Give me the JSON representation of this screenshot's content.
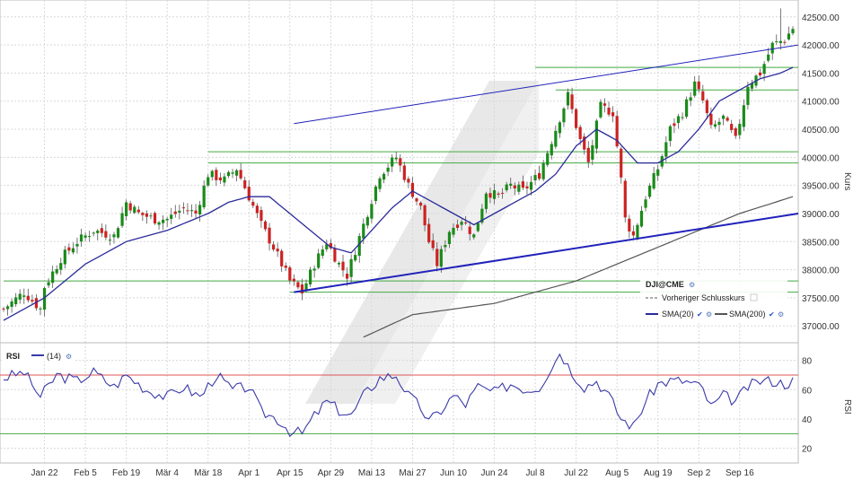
{
  "chart_data": [
    {
      "type": "candlestick",
      "symbol": "DJI@CME",
      "ylabel": "Kurs",
      "ylim": [
        36700,
        42800
      ],
      "yticks": [
        37000,
        37500,
        38000,
        38500,
        39000,
        39500,
        40000,
        40500,
        41000,
        41500,
        42000,
        42500
      ],
      "ytick_labels": [
        "37000.00",
        "37500.00",
        "38000.00",
        "38500.00",
        "39000.00",
        "39500.00",
        "40000.00",
        "40500.00",
        "41000.00",
        "41500.00",
        "42000.00",
        "42500.00"
      ],
      "x_labels": [
        "Jan 22",
        "Feb 5",
        "Feb 19",
        "Mär 4",
        "Mär 18",
        "Apr 1",
        "Apr 15",
        "Apr 29",
        "Mai 13",
        "Mai 27",
        "Jun 10",
        "Jun 24",
        "Jul 8",
        "Jul 22",
        "Aug 5",
        "Aug 19",
        "Sep 2",
        "Sep 16"
      ],
      "x_label_index": [
        10,
        20,
        30,
        40,
        50,
        60,
        70,
        80,
        90,
        100,
        110,
        120,
        130,
        140,
        150,
        160,
        170,
        180
      ],
      "n_days": 194,
      "close_keypoints": [
        [
          0,
          37300
        ],
        [
          5,
          37600
        ],
        [
          9,
          37300
        ],
        [
          10,
          37700
        ],
        [
          14,
          38200
        ],
        [
          18,
          38500
        ],
        [
          22,
          38700
        ],
        [
          27,
          38600
        ],
        [
          30,
          39200
        ],
        [
          33,
          39000
        ],
        [
          37,
          38900
        ],
        [
          40,
          38900
        ],
        [
          44,
          39100
        ],
        [
          47,
          39000
        ],
        [
          50,
          39700
        ],
        [
          54,
          39600
        ],
        [
          57,
          39800
        ],
        [
          60,
          39300
        ],
        [
          63,
          38800
        ],
        [
          66,
          38400
        ],
        [
          70,
          37800
        ],
        [
          73,
          37600
        ],
        [
          76,
          38100
        ],
        [
          79,
          38500
        ],
        [
          82,
          38100
        ],
        [
          84,
          37900
        ],
        [
          88,
          38800
        ],
        [
          92,
          39700
        ],
        [
          96,
          40000
        ],
        [
          99,
          39500
        ],
        [
          102,
          39100
        ],
        [
          104,
          38500
        ],
        [
          106,
          38100
        ],
        [
          109,
          38700
        ],
        [
          112,
          38900
        ],
        [
          115,
          38600
        ],
        [
          118,
          39400
        ],
        [
          121,
          39300
        ],
        [
          124,
          39500
        ],
        [
          127,
          39400
        ],
        [
          131,
          39700
        ],
        [
          135,
          40500
        ],
        [
          138,
          41100
        ],
        [
          141,
          40300
        ],
        [
          143,
          39900
        ],
        [
          146,
          40900
        ],
        [
          149,
          40800
        ],
        [
          151,
          39600
        ],
        [
          152,
          38900
        ],
        [
          154,
          38600
        ],
        [
          157,
          39300
        ],
        [
          160,
          39800
        ],
        [
          163,
          40500
        ],
        [
          166,
          40800
        ],
        [
          169,
          41300
        ],
        [
          171,
          41000
        ],
        [
          173,
          40500
        ],
        [
          176,
          40700
        ],
        [
          179,
          40300
        ],
        [
          182,
          41300
        ],
        [
          185,
          41500
        ],
        [
          188,
          42000
        ],
        [
          191,
          42100
        ],
        [
          193,
          42300
        ]
      ],
      "highlight_candle_highs": [
        [
          190,
          42650
        ]
      ],
      "sma20_keypoints": [
        [
          0,
          37100
        ],
        [
          10,
          37500
        ],
        [
          20,
          38100
        ],
        [
          30,
          38500
        ],
        [
          40,
          38700
        ],
        [
          50,
          39000
        ],
        [
          55,
          39200
        ],
        [
          60,
          39300
        ],
        [
          65,
          39300
        ],
        [
          70,
          39000
        ],
        [
          75,
          38700
        ],
        [
          80,
          38400
        ],
        [
          85,
          38300
        ],
        [
          90,
          38700
        ],
        [
          95,
          39100
        ],
        [
          100,
          39400
        ],
        [
          105,
          39200
        ],
        [
          110,
          39000
        ],
        [
          115,
          38800
        ],
        [
          120,
          39000
        ],
        [
          125,
          39200
        ],
        [
          130,
          39400
        ],
        [
          135,
          39700
        ],
        [
          140,
          40200
        ],
        [
          145,
          40500
        ],
        [
          150,
          40300
        ],
        [
          155,
          39900
        ],
        [
          160,
          39900
        ],
        [
          165,
          40100
        ],
        [
          170,
          40500
        ],
        [
          175,
          41000
        ],
        [
          180,
          41200
        ],
        [
          185,
          41400
        ],
        [
          190,
          41500
        ],
        [
          193,
          41600
        ]
      ],
      "sma200_keypoints": [
        [
          88,
          36800
        ],
        [
          100,
          37200
        ],
        [
          120,
          37400
        ],
        [
          140,
          37800
        ],
        [
          150,
          38100
        ],
        [
          160,
          38400
        ],
        [
          170,
          38700
        ],
        [
          180,
          39000
        ],
        [
          193,
          39300
        ]
      ],
      "horizontal_levels": [
        {
          "value": 37800,
          "from": 0,
          "to": 193
        },
        {
          "value": 37600,
          "from": 70,
          "to": 193
        },
        {
          "value": 40100,
          "from": 50,
          "to": 193
        },
        {
          "value": 39900,
          "from": 50,
          "to": 193
        },
        {
          "value": 41600,
          "from": 130,
          "to": 193
        },
        {
          "value": 41200,
          "from": 135,
          "to": 193
        }
      ],
      "trend_lines": [
        {
          "from": [
            71,
            37600
          ],
          "to": [
            193,
            39000
          ],
          "width": 2
        },
        {
          "from": [
            71,
            40600
          ],
          "to": [
            193,
            42000
          ],
          "width": 1
        }
      ],
      "legend": {
        "title": "DJI@CME",
        "items": [
          "Vorheriger Schlusskurs",
          "SMA(20)",
          "SMA(200)"
        ],
        "placement": "bottom-right"
      },
      "colors": {
        "up": "#1a8a1a",
        "down": "#cc2222",
        "sma20": "#2b2b9a",
        "sma200": "#555555",
        "levels": "#44aa44",
        "trend": "#2222bb"
      }
    },
    {
      "type": "line",
      "title": "RSI",
      "legend_label": "(14)",
      "ylabel": "RSI",
      "ylim": [
        10,
        92
      ],
      "yticks": [
        20,
        40,
        60,
        80
      ],
      "upper_level": 70,
      "lower_level": 30,
      "rsi_keypoints": [
        [
          0,
          68
        ],
        [
          5,
          72
        ],
        [
          9,
          55
        ],
        [
          13,
          70
        ],
        [
          18,
          66
        ],
        [
          22,
          72
        ],
        [
          27,
          62
        ],
        [
          30,
          70
        ],
        [
          35,
          60
        ],
        [
          40,
          55
        ],
        [
          44,
          62
        ],
        [
          48,
          55
        ],
        [
          52,
          70
        ],
        [
          56,
          60
        ],
        [
          60,
          62
        ],
        [
          63,
          45
        ],
        [
          67,
          40
        ],
        [
          70,
          32
        ],
        [
          73,
          30
        ],
        [
          76,
          42
        ],
        [
          79,
          52
        ],
        [
          82,
          46
        ],
        [
          85,
          42
        ],
        [
          88,
          56
        ],
        [
          92,
          68
        ],
        [
          96,
          70
        ],
        [
          99,
          56
        ],
        [
          102,
          48
        ],
        [
          104,
          38
        ],
        [
          107,
          46
        ],
        [
          110,
          56
        ],
        [
          113,
          50
        ],
        [
          116,
          62
        ],
        [
          120,
          58
        ],
        [
          124,
          64
        ],
        [
          128,
          60
        ],
        [
          131,
          62
        ],
        [
          135,
          80
        ],
        [
          136,
          86
        ],
        [
          139,
          72
        ],
        [
          142,
          62
        ],
        [
          145,
          66
        ],
        [
          148,
          56
        ],
        [
          151,
          40
        ],
        [
          154,
          35
        ],
        [
          157,
          52
        ],
        [
          160,
          64
        ],
        [
          163,
          66
        ],
        [
          166,
          66
        ],
        [
          169,
          64
        ],
        [
          171,
          60
        ],
        [
          173,
          48
        ],
        [
          176,
          56
        ],
        [
          179,
          52
        ],
        [
          182,
          62
        ],
        [
          185,
          66
        ],
        [
          188,
          66
        ],
        [
          191,
          64
        ],
        [
          193,
          66
        ]
      ],
      "colors": {
        "line": "#3a3aa8",
        "upper": "#dd5555",
        "lower": "#44aa44"
      }
    }
  ]
}
